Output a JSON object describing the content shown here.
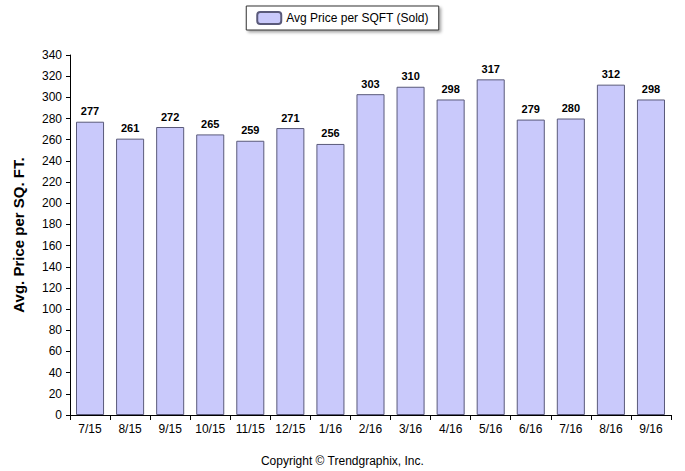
{
  "chart_data": {
    "type": "bar",
    "y_label": "Avg. Price per SQ. FT.",
    "annotations": [
      "Copyright © Trendgraphix, Inc."
    ],
    "categories": [
      "7/15",
      "8/15",
      "9/15",
      "10/15",
      "11/15",
      "12/15",
      "1/16",
      "2/16",
      "3/16",
      "4/16",
      "5/16",
      "6/16",
      "7/16",
      "8/16",
      "9/16"
    ],
    "series": [
      {
        "name": "Avg Price per SQFT (Sold)",
        "color": "#c9c9fb",
        "values": [
          277,
          261,
          272,
          265,
          259,
          271,
          256,
          303,
          310,
          298,
          317,
          279,
          280,
          312,
          298
        ]
      }
    ],
    "ylim": [
      0,
      340
    ],
    "yticks": [
      0,
      20,
      40,
      60,
      80,
      100,
      120,
      140,
      160,
      180,
      200,
      220,
      240,
      260,
      280,
      300,
      320,
      340
    ],
    "legend": "top",
    "data_labels": true,
    "grid": false
  }
}
